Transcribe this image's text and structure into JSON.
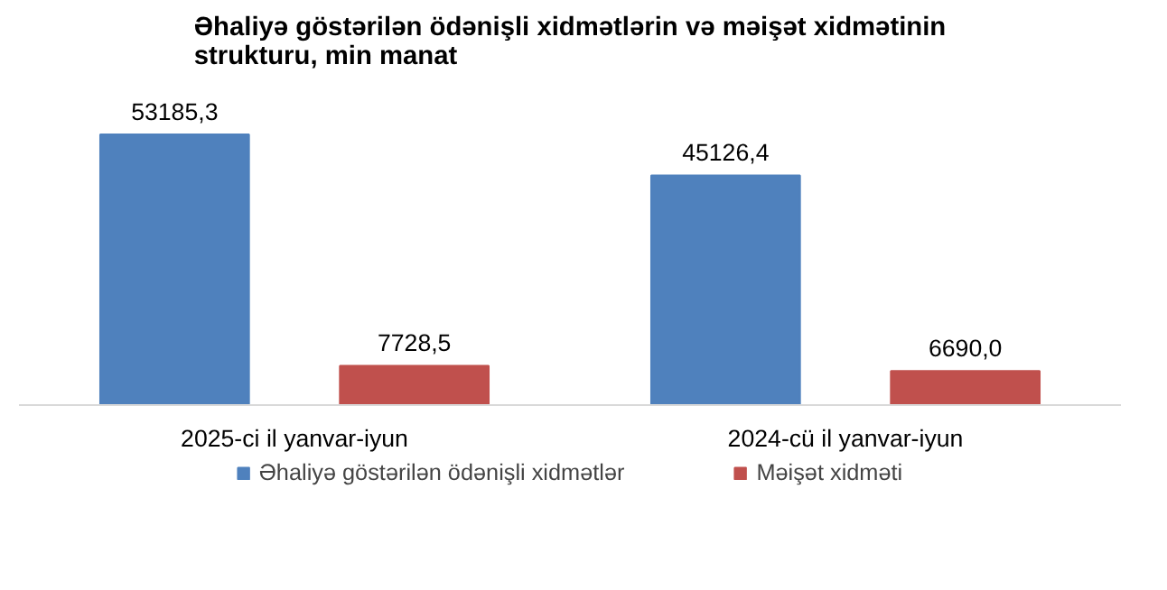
{
  "chart_data": {
    "type": "bar",
    "title": "Əhaliyə göstərilən ödənişli xidmətlərin və məişət xidmətinin strukturu, min manat",
    "categories": [
      "2025-ci il yanvar-iyun",
      "2024-cü il yanvar-iyun"
    ],
    "series": [
      {
        "name": "Əhaliyə göstərilən ödənişli xidmətlər",
        "color": "#4f81bd",
        "values": [
          53185.3,
          45126.4
        ],
        "value_labels": [
          "53185,3",
          "45126,4"
        ]
      },
      {
        "name": "Məişət xidməti",
        "color": "#c0504d",
        "values": [
          7728.5,
          6690.0
        ],
        "value_labels": [
          "7728,5",
          "6690,0"
        ]
      }
    ],
    "legend": "bottom"
  }
}
